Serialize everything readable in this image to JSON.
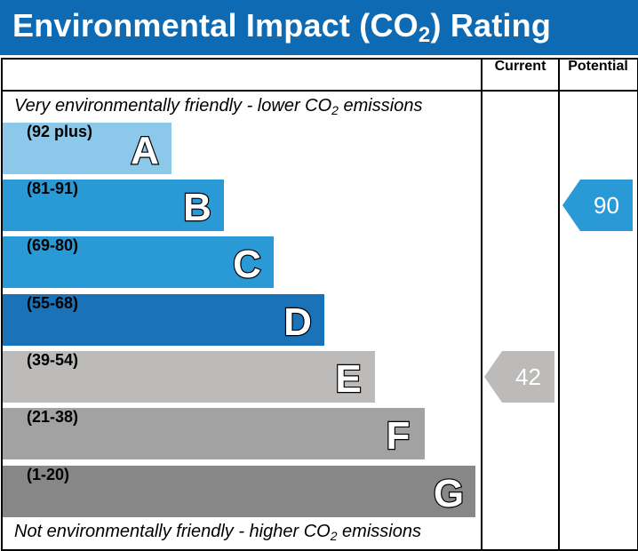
{
  "header": {
    "title_main": "Environmental Impact (CO",
    "title_sub": "2",
    "title_end": ") Rating"
  },
  "columns": {
    "current": "Current",
    "potential": "Potential"
  },
  "captions": {
    "top_main": "Very environmentally friendly - lower CO",
    "top_sub": "2",
    "top_end": " emissions",
    "bottom_main": "Not environmentally friendly - higher CO",
    "bottom_sub": "2",
    "bottom_end": " emissions"
  },
  "chart_data": {
    "type": "bar",
    "categories": [
      "A",
      "B",
      "C",
      "D",
      "E",
      "F",
      "G"
    ],
    "ranges": [
      "(92 plus)",
      "(81-91)",
      "(69-80)",
      "(55-68)",
      "(39-54)",
      "(21-38)",
      "(1-20)"
    ],
    "colors": [
      "#8cc8ea",
      "#2a9ad7",
      "#2a9ad7",
      "#1a72b8",
      "#bcbbb9",
      "#a2a2a2",
      "#878787"
    ],
    "current": {
      "value": 42,
      "band": "E",
      "color": "#bcbbb9"
    },
    "potential": {
      "value": 90,
      "band": "B",
      "color": "#2a9ad7"
    }
  }
}
